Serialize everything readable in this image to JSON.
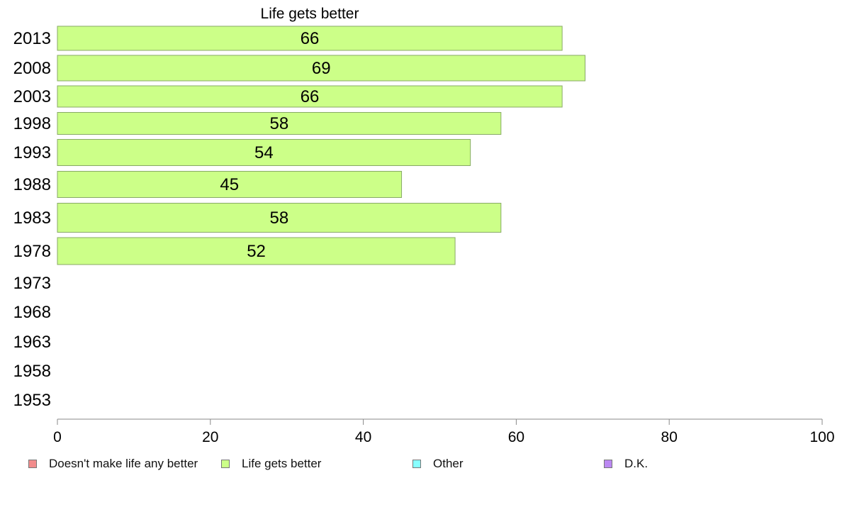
{
  "chart_data": {
    "type": "bar",
    "orientation": "horizontal",
    "title": "Life gets better",
    "categories": [
      "2013",
      "2008",
      "2003",
      "1998",
      "1993",
      "1988",
      "1983",
      "1978",
      "1973",
      "1968",
      "1963",
      "1958",
      "1953"
    ],
    "series": [
      {
        "name": "Life gets better",
        "color": "#ccff88",
        "values": [
          66,
          69,
          66,
          58,
          54,
          45,
          58,
          52,
          null,
          null,
          null,
          null,
          null
        ],
        "labels": [
          "66",
          "69",
          "66",
          "58",
          "54",
          "45",
          "58",
          "52",
          "",
          "",
          "",
          "",
          ""
        ]
      }
    ],
    "xlim": [
      0,
      100
    ],
    "xticks": [
      "0",
      "20",
      "40",
      "60",
      "80",
      "100"
    ],
    "grid": false,
    "legend_position": "bottom"
  },
  "legend": {
    "items": [
      {
        "label": "Doesn't make life any better",
        "color": "#f28c8c"
      },
      {
        "label": "Life gets better",
        "color": "#ccff88"
      },
      {
        "label": "Other",
        "color": "#88ffff"
      },
      {
        "label": "D.K.",
        "color": "#bb88f2"
      }
    ]
  }
}
